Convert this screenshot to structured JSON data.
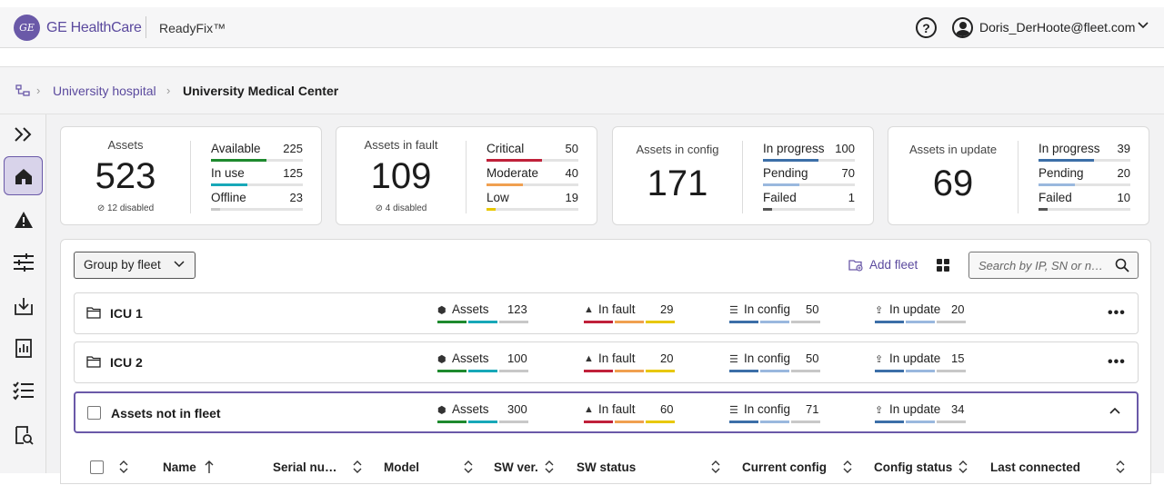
{
  "header": {
    "logo_text": "GE",
    "brand": "GE HealthCare",
    "product": "ReadyFix™",
    "help_icon": "help-circle-icon",
    "user_icon": "user-circle-icon",
    "user_name": "Doris_DerHoote@fleet.com"
  },
  "breadcrumb": {
    "icon": "hierarchy-icon",
    "parent": "University hospital",
    "current": "University Medical Center"
  },
  "sidebar": {
    "items": [
      {
        "icon": "expand-icon"
      },
      {
        "icon": "home-icon",
        "active": true
      },
      {
        "icon": "warning-icon"
      },
      {
        "icon": "sliders-icon"
      },
      {
        "icon": "inbox-download-icon"
      },
      {
        "icon": "report-chart-icon"
      },
      {
        "icon": "checklist-icon"
      },
      {
        "icon": "document-search-icon"
      }
    ]
  },
  "cards": [
    {
      "title": "Assets",
      "value": "523",
      "sub": "12 disabled",
      "metrics": [
        {
          "label": "Available",
          "value": "225",
          "fraction": 0.6,
          "color": "#1e8a2e"
        },
        {
          "label": "In use",
          "value": "125",
          "fraction": 0.4,
          "color": "#17a8b8"
        },
        {
          "label": "Offline",
          "value": "23",
          "fraction": 0.1,
          "color": "#c8c8c8"
        }
      ]
    },
    {
      "title": "Assets in fault",
      "value": "109",
      "sub": "4 disabled",
      "metrics": [
        {
          "label": "Critical",
          "value": "50",
          "fraction": 0.6,
          "color": "#c0213a"
        },
        {
          "label": "Moderate",
          "value": "40",
          "fraction": 0.4,
          "color": "#f0a050"
        },
        {
          "label": "Low",
          "value": "19",
          "fraction": 0.1,
          "color": "#e8c800"
        }
      ]
    },
    {
      "title": "Assets in config",
      "value": "171",
      "sub": "",
      "metrics": [
        {
          "label": "In progress",
          "value": "100",
          "fraction": 0.6,
          "color": "#3c6fa8"
        },
        {
          "label": "Pending",
          "value": "70",
          "fraction": 0.4,
          "color": "#9ab8de"
        },
        {
          "label": "Failed",
          "value": "1",
          "fraction": 0.1,
          "color": "#555555"
        }
      ]
    },
    {
      "title": "Assets in update",
      "value": "69",
      "sub": "",
      "metrics": [
        {
          "label": "In progress",
          "value": "39",
          "fraction": 0.6,
          "color": "#3c6fa8"
        },
        {
          "label": "Pending",
          "value": "20",
          "fraction": 0.4,
          "color": "#9ab8de"
        },
        {
          "label": "Failed",
          "value": "10",
          "fraction": 0.1,
          "color": "#555555"
        }
      ]
    }
  ],
  "toolbar": {
    "group_by": "Group by fleet",
    "add_fleet": "Add fleet",
    "search_placeholder": "Search by IP, SN or n…"
  },
  "fleet_labels": {
    "assets": "Assets",
    "in_fault": "In fault",
    "in_config": "In config",
    "in_update": "In update"
  },
  "fleets": [
    {
      "name": "ICU 1",
      "assets": "123",
      "in_fault": "29",
      "in_config": "50",
      "in_update": "20",
      "type": "folder"
    },
    {
      "name": "ICU 2",
      "assets": "100",
      "in_fault": "20",
      "in_config": "50",
      "in_update": "15",
      "type": "folder"
    },
    {
      "name": "Assets not in fleet",
      "assets": "300",
      "in_fault": "60",
      "in_config": "71",
      "in_update": "34",
      "type": "checkbox"
    }
  ],
  "table": {
    "columns": [
      "Name",
      "Serial nu…",
      "Model",
      "SW ver.",
      "SW status",
      "Current config",
      "Config status",
      "Last connected"
    ]
  },
  "colors": {
    "accent": "#6a59a8",
    "assets_bars": [
      "#1e8a2e",
      "#17a8b8",
      "#c8c8c8"
    ],
    "fault_bars": [
      "#c0213a",
      "#f0a050",
      "#e8c800"
    ],
    "config_bars": [
      "#3c6fa8",
      "#9ab8de",
      "#c8c8c8"
    ]
  }
}
